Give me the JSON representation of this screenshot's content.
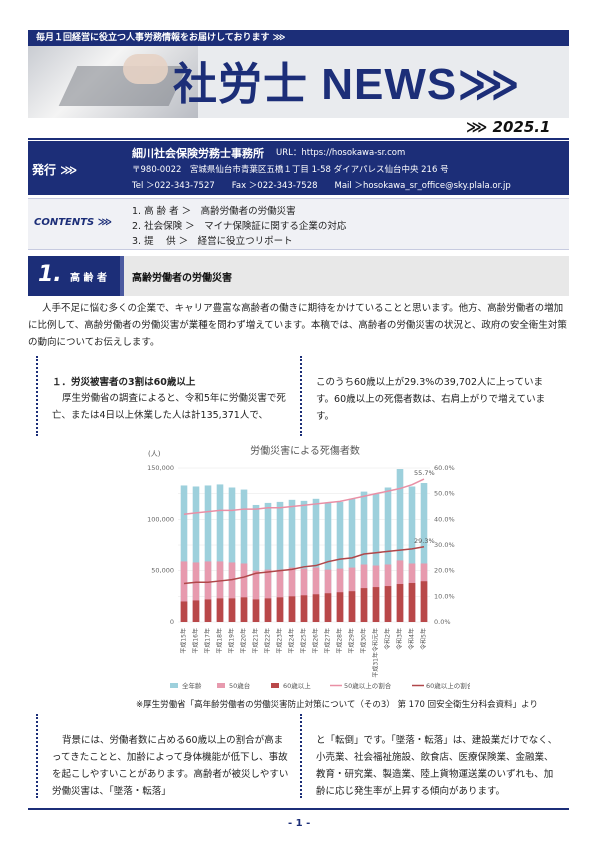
{
  "header": {
    "tagline": "毎月１回経営に役立つ人事労務情報をお届けしております ⋙",
    "logo": "社労士 NEWS⋙",
    "issue": "⋙ 2025.1"
  },
  "publisher": {
    "label": "発行 ⋙",
    "name": "細川社会保険労務士事務所",
    "url": "URL：https://hosokawa-sr.com",
    "address": "〒980-0022　宮城県仙台市青葉区五橋１丁目 1-58 ダイアパレス仙台中央 216 号",
    "contact": "Tel ＞022-343-7527　　Fax ＞022-343-7528　　Mail ＞hosokawa_sr_office@sky.plala.or.jp"
  },
  "contents": {
    "label": "CONTENTS ⋙",
    "items": [
      "1.  高 齢 者 ＞　高齢労働者の労働災害",
      "2.  社会保険 ＞　マイナ保険証に関する企業の対応",
      "3.  提　 供 ＞　経営に役立つリポート"
    ]
  },
  "section": {
    "number": "1.",
    "label": "高 齢 者",
    "title": "高齢労働者の労働災害"
  },
  "intro": "人手不足に悩む多くの企業で、キャリア豊富な高齢者の働きに期待をかけていることと思います。他方、高齢労働者の増加に比例して、高齢労働者の労働災害が業種を問わず増えています。本稿では、高齢者の労働災害の状況と、政府の安全衛生対策の動向についてお伝えします。",
  "article": {
    "sub_heading": "１．労災被害者の3割は60歳以上",
    "p1": "厚生労働省の調査によると、令和5年に労働災害で死亡、または4日以上休業した人は計135,371人で、",
    "p2": "このうち60歳以上が29.3%の39,702人に上っています。60歳以上の死傷者数は、右肩上がりで増えています。",
    "p3": "背景には、労働者数に占める60歳以上の割合が高まってきたことと、加齢によって身体機能が低下し、事故を起こしやすいことがあります。高齢者が被災しやすい労働災害は、「墜落・転落」",
    "p4": "と「転倒」です。「墜落・転落」は、建設業だけでなく、小売業、社会福祉施設、飲食店、医療保険業、金融業、教育・研究業、製造業、陸上貨物運送業のいずれも、加齢に応じ発生率が上昇する傾向があります。"
  },
  "source_note": "※厚生労働省「高年齢労働者の労働災害防止対策について（その3） 第 170 回安全衛生分科会資料」より",
  "page_number": "- 1 -",
  "colors": {
    "navy": "#1c2e78",
    "bar_all": "#9dd0dc",
    "bar_60": "#e79aae",
    "bar_60_dark": "#b94849",
    "line_all": "#e98fa5",
    "line_60": "#b0474a"
  },
  "chart_data": {
    "type": "bar",
    "title": "労働災害による死傷者数",
    "ylabel": "(人)",
    "ylim": [
      0,
      150000
    ],
    "y2lim": [
      0,
      0.6
    ],
    "yticks": [
      "0",
      "50,000",
      "100,000",
      "150,000"
    ],
    "y2ticks": [
      "0.0%",
      "10.0%",
      "20.0%",
      "30.0%",
      "40.0%",
      "50.0%",
      "60.0%"
    ],
    "categories": [
      "平成15年",
      "平成16年",
      "平成17年",
      "平成18年",
      "平成19年",
      "平成20年",
      "平成21年",
      "平成22年",
      "平成23年",
      "平成24年",
      "平成25年",
      "平成26年",
      "平成27年",
      "平成28年",
      "平成29年",
      "平成30年",
      "平成31年令和元年",
      "令和2年",
      "令和3年",
      "令和4年",
      "令和5年"
    ],
    "series": [
      {
        "name": "全年齢",
        "kind": "bar",
        "values": [
          133000,
          132000,
          133000,
          134000,
          131000,
          129000,
          114000,
          116000,
          117000,
          119000,
          118000,
          120000,
          116000,
          117000,
          120000,
          127000,
          125000,
          131000,
          149000,
          132000,
          135371
        ]
      },
      {
        "name": "50歳台",
        "kind": "bar",
        "values": [
          59000,
          58000,
          59000,
          59000,
          58000,
          57000,
          50000,
          51000,
          51000,
          53000,
          52000,
          53000,
          51000,
          52000,
          53000,
          56000,
          55000,
          56000,
          60000,
          57000,
          57000
        ]
      },
      {
        "name": "60歳以上",
        "kind": "bar",
        "values": [
          20000,
          21000,
          22000,
          23000,
          23000,
          24000,
          22000,
          23000,
          24000,
          25000,
          26000,
          27000,
          28000,
          29000,
          30000,
          33000,
          34000,
          35000,
          37000,
          38000,
          39702
        ]
      },
      {
        "name": "50歳以上の割合",
        "kind": "line",
        "values": [
          0.42,
          0.425,
          0.43,
          0.435,
          0.435,
          0.44,
          0.44,
          0.445,
          0.445,
          0.45,
          0.455,
          0.46,
          0.465,
          0.47,
          0.48,
          0.49,
          0.5,
          0.51,
          0.52,
          0.535,
          0.557
        ]
      },
      {
        "name": "60歳以上の割合",
        "kind": "line",
        "values": [
          0.15,
          0.155,
          0.155,
          0.16,
          0.165,
          0.175,
          0.19,
          0.195,
          0.2,
          0.205,
          0.215,
          0.22,
          0.235,
          0.245,
          0.25,
          0.265,
          0.27,
          0.275,
          0.28,
          0.285,
          0.293
        ]
      }
    ],
    "annotations": [
      "55.7%",
      "29.3%"
    ],
    "legend": "bottom"
  }
}
